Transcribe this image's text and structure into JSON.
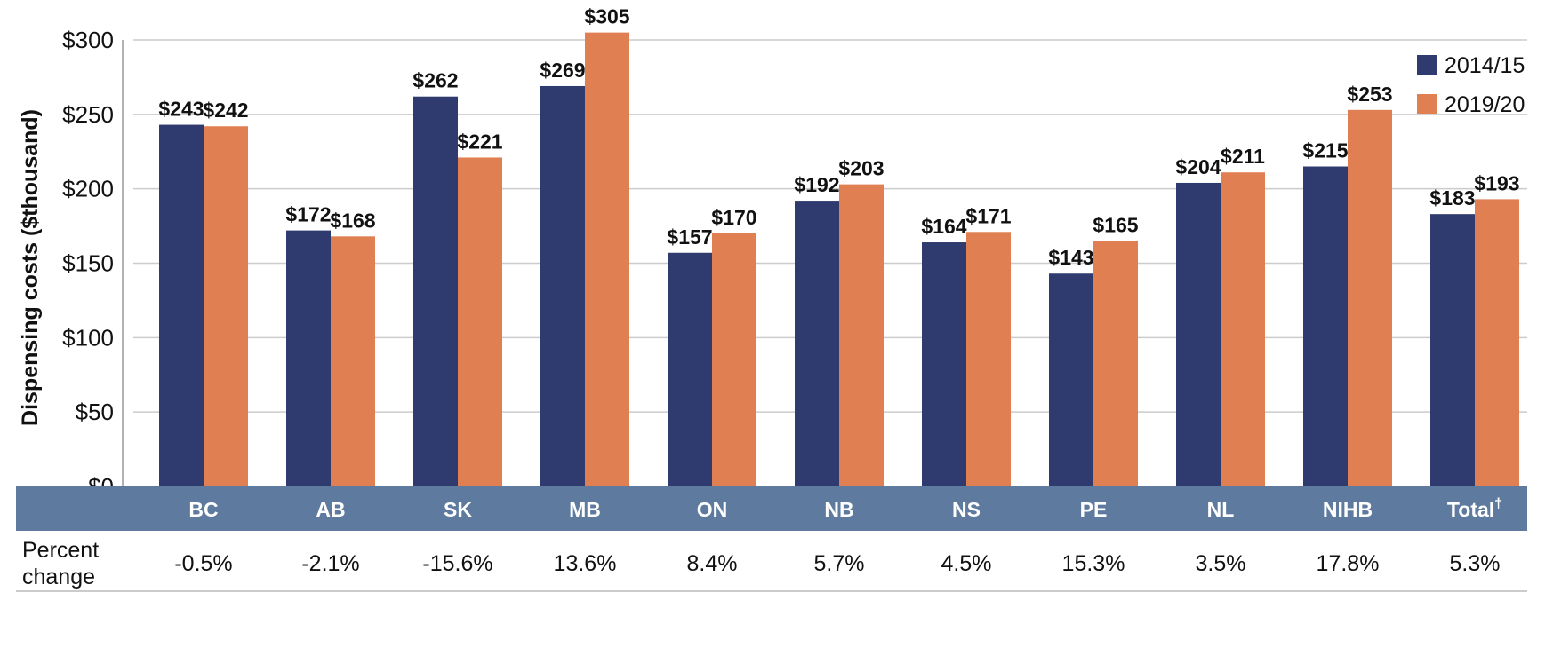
{
  "chart_data": {
    "type": "bar",
    "ylabel": "Dispensing costs ($thousand)",
    "ylim": [
      0,
      300
    ],
    "yticks": [
      0,
      50,
      100,
      150,
      200,
      250,
      300
    ],
    "ytick_labels": [
      "$0",
      "$50",
      "$100",
      "$150",
      "$200",
      "$250",
      "$300"
    ],
    "grid": true,
    "legend_position": "top-right",
    "categories": [
      "BC",
      "AB",
      "SK",
      "MB",
      "ON",
      "NB",
      "NS",
      "PE",
      "NL",
      "NIHB",
      "Total"
    ],
    "category_superscripts": [
      "",
      "",
      "",
      "",
      "",
      "",
      "",
      "",
      "",
      "",
      "†"
    ],
    "series": [
      {
        "name": "2014/15",
        "color": "#2f3b6e",
        "values": [
          243,
          172,
          262,
          269,
          157,
          192,
          164,
          143,
          204,
          215,
          183
        ],
        "labels": [
          "$243",
          "$172",
          "$262",
          "$269",
          "$157",
          "$192",
          "$164",
          "$143",
          "$204",
          "$215",
          "$183"
        ]
      },
      {
        "name": "2019/20",
        "color": "#e07f52",
        "values": [
          242,
          168,
          221,
          305,
          170,
          203,
          171,
          165,
          211,
          253,
          193
        ],
        "labels": [
          "$242",
          "$168",
          "$221",
          "$305",
          "$170",
          "$203",
          "$171",
          "$165",
          "$211",
          "$253",
          "$193"
        ]
      }
    ],
    "percent_change_label": [
      "Percent",
      "change"
    ],
    "percent_change": [
      "-0.5%",
      "-2.1%",
      "-15.6%",
      "13.6%",
      "8.4%",
      "5.7%",
      "4.5%",
      "15.3%",
      "3.5%",
      "17.8%",
      "5.3%"
    ]
  },
  "colors": {
    "category_band": "#5e7b9f",
    "grid": "#cccccc",
    "axis_line": "#999999"
  }
}
